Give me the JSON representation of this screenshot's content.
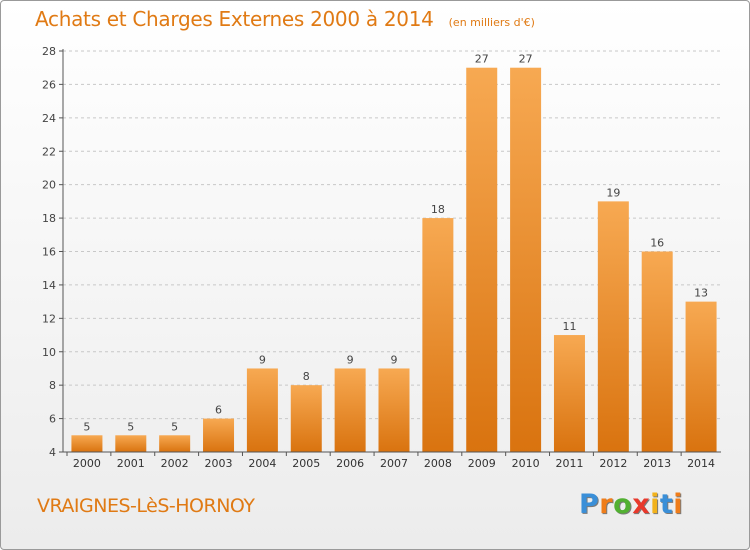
{
  "header": {
    "title": "Achats et Charges Externes 2000 à 2014",
    "unit": "(en milliers d'€)"
  },
  "footer": {
    "commune": "VRAIGNES-LèS-HORNOY",
    "brand_letters": [
      "P",
      "r",
      "o",
      "x",
      "i",
      "t",
      "i"
    ],
    "brand_colors": [
      "#3a8fd8",
      "#ef7d1a",
      "#52b032",
      "#e8392c",
      "#f2b21b",
      "#3a8fd8",
      "#ef7d1a"
    ]
  },
  "colors": {
    "title": "#e07a14",
    "bar_light": "#f7a952",
    "bar_dark": "#d9730f",
    "grid": "#c8c8c8",
    "axis": "#555555"
  },
  "chart_data": {
    "type": "bar",
    "categories": [
      "2000",
      "2001",
      "2002",
      "2003",
      "2004",
      "2005",
      "2006",
      "2007",
      "2008",
      "2009",
      "2010",
      "2011",
      "2012",
      "2013",
      "2014"
    ],
    "values": [
      5,
      5,
      5,
      6,
      9,
      8,
      9,
      9,
      18,
      27,
      27,
      11,
      19,
      16,
      13
    ],
    "title": "Achats et Charges Externes 2000 à 2014",
    "subtitle": "(en milliers d'€)",
    "ylim": [
      4,
      28
    ],
    "yticks": [
      4,
      6,
      8,
      10,
      12,
      14,
      16,
      18,
      20,
      22,
      24,
      26,
      28
    ],
    "grid": true,
    "grid_style": "dashed horizontal",
    "data_labels": true
  }
}
